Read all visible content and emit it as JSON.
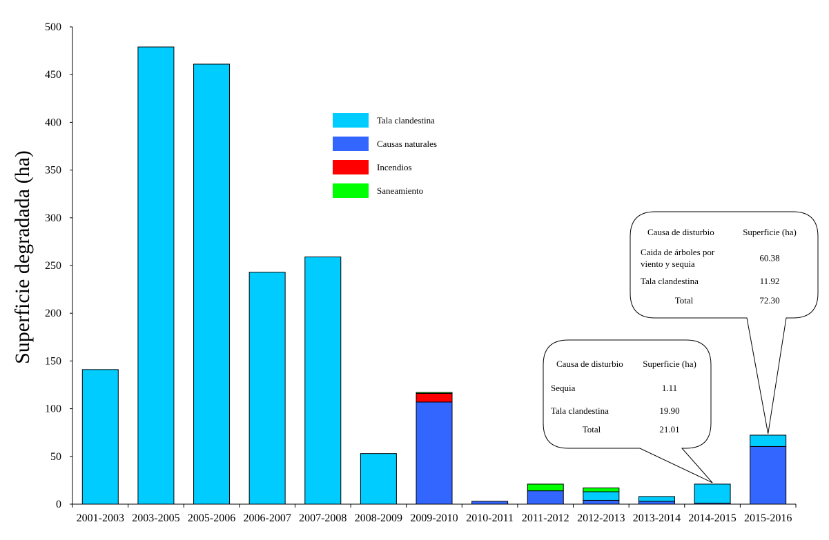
{
  "chart_data": {
    "type": "bar",
    "stacked": true,
    "title": "",
    "xlabel": "",
    "ylabel": "Superficie degradada (ha)",
    "ylim": [
      0,
      500
    ],
    "yticks": [
      "0",
      "50",
      "100",
      "150",
      "200",
      "250",
      "300",
      "350",
      "400",
      "450",
      "500"
    ],
    "grid": false,
    "legend_position": "upper-center",
    "categories": [
      "2001-2003",
      "2003-2005",
      "2005-2006",
      "2006-2007",
      "2007-2008",
      "2008-2009",
      "2009-2010",
      "2010-2011",
      "2011-2012",
      "2012-2013",
      "2013-2014",
      "2014-2015",
      "2015-2016"
    ],
    "series": [
      {
        "name": "Causas naturales",
        "color": "#3366ff",
        "values": [
          0,
          0,
          0,
          0,
          0,
          0,
          107,
          3,
          14,
          4,
          3,
          1.11,
          60.38
        ]
      },
      {
        "name": "Tala clandestina",
        "color": "#00ccff",
        "values": [
          141,
          479,
          461,
          243,
          259,
          53,
          0,
          0,
          0,
          9,
          5,
          19.9,
          11.92
        ]
      },
      {
        "name": "Incendios",
        "color": "#ff0000",
        "values": [
          0,
          0,
          0,
          0,
          0,
          0,
          9,
          0,
          0,
          0,
          0,
          0,
          0
        ]
      },
      {
        "name": "Saneamiento",
        "color": "#00ff00",
        "values": [
          0,
          0,
          0,
          0,
          0,
          0,
          1,
          0,
          7,
          4,
          0,
          0,
          0
        ]
      }
    ],
    "legend": [
      {
        "name": "Tala clandestina",
        "color": "#00ccff"
      },
      {
        "name": "Causas naturales",
        "color": "#3366ff"
      },
      {
        "name": "Incendios",
        "color": "#ff0000"
      },
      {
        "name": "Saneamiento",
        "color": "#00ff00"
      }
    ],
    "callouts": [
      {
        "target_category": "2014-2015",
        "header": [
          "Causa de disturbio",
          "Superficie (ha)"
        ],
        "rows": [
          {
            "label": [
              "Sequia"
            ],
            "value": "1.11"
          },
          {
            "label": [
              "Tala clandestina"
            ],
            "value": "19.90"
          },
          {
            "label": [
              "Total"
            ],
            "value": "21.01"
          }
        ]
      },
      {
        "target_category": "2015-2016",
        "header": [
          "Causa de disturbio",
          "Superficie (ha)"
        ],
        "rows": [
          {
            "label": [
              "Caida de árboles por",
              "viento y sequia"
            ],
            "value": "60.38"
          },
          {
            "label": [
              "Tala clandestina"
            ],
            "value": "11.92"
          },
          {
            "label": [
              "Total"
            ],
            "value": "72.30"
          }
        ]
      }
    ]
  }
}
